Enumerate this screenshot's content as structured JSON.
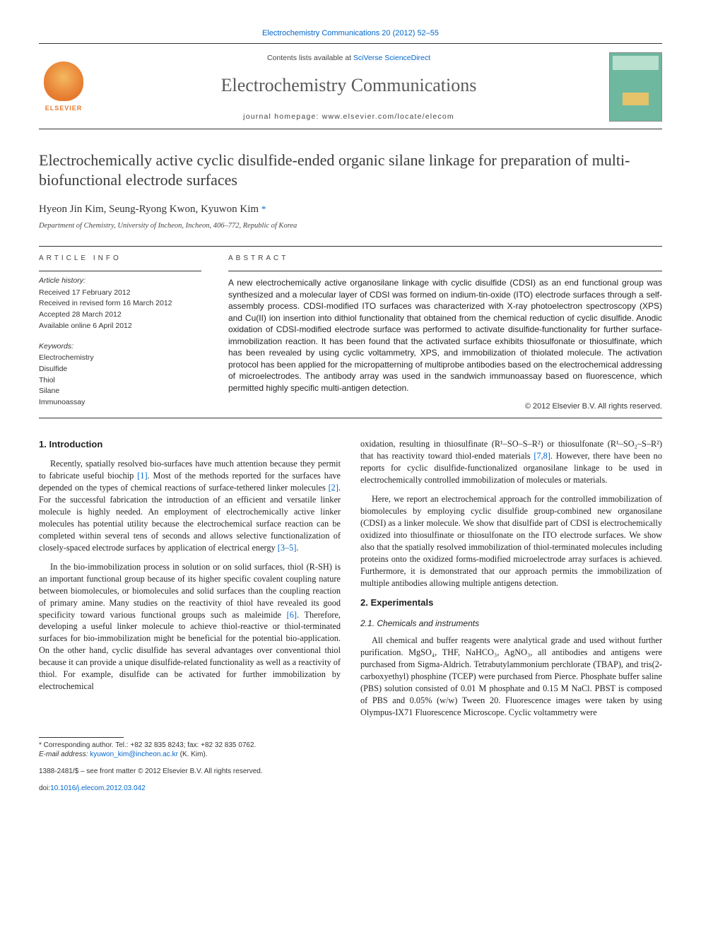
{
  "header": {
    "top_journal_line": "Electrochemistry Communications 20 (2012) 52–55",
    "contents_prefix": "Contents lists available at ",
    "contents_link": "SciVerse ScienceDirect",
    "journal_name": "Electrochemistry Communications",
    "homepage_prefix": "journal homepage: ",
    "homepage_url": "www.elsevier.com/locate/elecom",
    "elsevier_label": "ELSEVIER"
  },
  "article": {
    "title": "Electrochemically active cyclic disulfide-ended organic silane linkage for preparation of multi-biofunctional electrode surfaces",
    "authors_html": "Hyeon Jin Kim, Seung-Ryong Kwon, Kyuwon Kim",
    "corresponding_mark": "*",
    "affiliation": "Department of Chemistry, University of Incheon, Incheon, 406–772, Republic of Korea"
  },
  "info": {
    "section_label": "article info",
    "history_label": "Article history:",
    "history": [
      "Received 17 February 2012",
      "Received in revised form 16 March 2012",
      "Accepted 28 March 2012",
      "Available online 6 April 2012"
    ],
    "keywords_label": "Keywords:",
    "keywords": [
      "Electrochemistry",
      "Disulfide",
      "Thiol",
      "Silane",
      "Immunoassay"
    ]
  },
  "abstract": {
    "section_label": "abstract",
    "text": "A new electrochemically active organosilane linkage with cyclic disulfide (CDSI) as an end functional group was synthesized and a molecular layer of CDSI was formed on indium-tin-oxide (ITO) electrode surfaces through a self-assembly process. CDSI-modified ITO surfaces was characterized with X-ray photoelectron spectroscopy (XPS) and Cu(II) ion insertion into dithiol functionality that obtained from the chemical reduction of cyclic disulfide. Anodic oxidation of CDSI-modified electrode surface was performed to activate disulfide-functionality for further surface-immobilization reaction. It has been found that the activated surface exhibits thiosulfonate or thiosulfinate, which has been revealed by using cyclic voltammetry, XPS, and immobilization of thiolated molecule. The activation protocol has been applied for the micropatterning of multiprobe antibodies based on the electrochemical addressing of microelectrodes. The antibody array was used in the sandwich immunoassay based on fluorescence, which permitted highly specific multi-antigen detection.",
    "copyright": "© 2012 Elsevier B.V. All rights reserved."
  },
  "sections": {
    "intro_heading": "1. Introduction",
    "intro_p1": "Recently, spatially resolved bio-surfaces have much attention because they permit to fabricate useful biochip [1]. Most of the methods reported for the surfaces have depended on the types of chemical reactions of surface-tethered linker molecules [2]. For the successful fabrication the introduction of an efficient and versatile linker molecule is highly needed. An employment of electrochemically active linker molecules has potential utility because the electrochemical surface reaction can be completed within several tens of seconds and allows selective functionalization of closely-spaced electrode surfaces by application of electrical energy [3–5].",
    "intro_p2": "In the bio-immobilization process in solution or on solid surfaces, thiol (R-SH) is an important functional group because of its higher specific covalent coupling nature between biomolecules, or biomolecules and solid surfaces than the coupling reaction of primary amine. Many studies on the reactivity of thiol have revealed its good specificity toward various functional groups such as maleimide [6]. Therefore, developing a useful linker molecule to achieve thiol-reactive or thiol-terminated surfaces for bio-immobilization might be beneficial for the potential bio-application. On the other hand, cyclic disulfide has several advantages over conventional thiol because it can provide a unique disulfide-related functionality as well as a reactivity of thiol. For example, disulfide can be activated for further immobilization by electrochemical",
    "intro_p3": "oxidation, resulting in thiosulfinate (R¹–SO–S–R²) or thiosulfonate (R¹–SO₂–S–R²) that has reactivity toward thiol-ended materials [7,8]. However, there have been no reports for cyclic disulfide-functionalized organosilane linkage to be used in electrochemically controlled immobilization of molecules or materials.",
    "intro_p4": "Here, we report an electrochemical approach for the controlled immobilization of biomolecules by employing cyclic disulfide group-combined new organosilane (CDSI) as a linker molecule. We show that disulfide part of CDSI is electrochemically oxidized into thiosulfinate or thiosulfonate on the ITO electrode surfaces. We show also that the spatially resolved immobilization of thiol-terminated molecules including proteins onto the oxidized forms-modified microelectrode array surfaces is achieved. Furthermore, it is demonstrated that our approach permits the immobilization of multiple antibodies allowing multiple antigens detection.",
    "exp_heading": "2. Experimentals",
    "exp_sub1": "2.1. Chemicals and instruments",
    "exp_p1": "All chemical and buffer reagents were analytical grade and used without further purification. MgSO₄, THF, NaHCO₃, AgNO₃, all antibodies and antigens were purchased from Sigma-Aldrich. Tetrabutylammonium perchlorate (TBAP), and tris(2-carboxyethyl) phosphine (TCEP) were purchased from Pierce. Phosphate buffer saline (PBS) solution consisted of 0.01 M phosphate and 0.15 M NaCl. PBST is composed of PBS and 0.05% (w/w) Tween 20. Fluorescence images were taken by using Olympus-IX71 Fluorescence Microscope. Cyclic voltammetry were"
  },
  "refs": {
    "r1": "[1]",
    "r2": "[2]",
    "r35": "[3–5]",
    "r6": "[6]",
    "r78": "[7,8]"
  },
  "footnote": {
    "star": "*",
    "line1": " Corresponding author. Tel.: +82 32 835 8243; fax: +82 32 835 0762.",
    "email_label": "E-mail address: ",
    "email": "kyuwon_kim@incheon.ac.kr",
    "email_suffix": " (K. Kim)."
  },
  "footer": {
    "front_matter": "1388-2481/$ – see front matter © 2012 Elsevier B.V. All rights reserved.",
    "doi_prefix": "doi:",
    "doi": "10.1016/j.elecom.2012.03.042"
  },
  "colors": {
    "link": "#0066cc",
    "text": "#222222",
    "elsevier": "#e67a2e",
    "cover": "#6eb89f"
  }
}
